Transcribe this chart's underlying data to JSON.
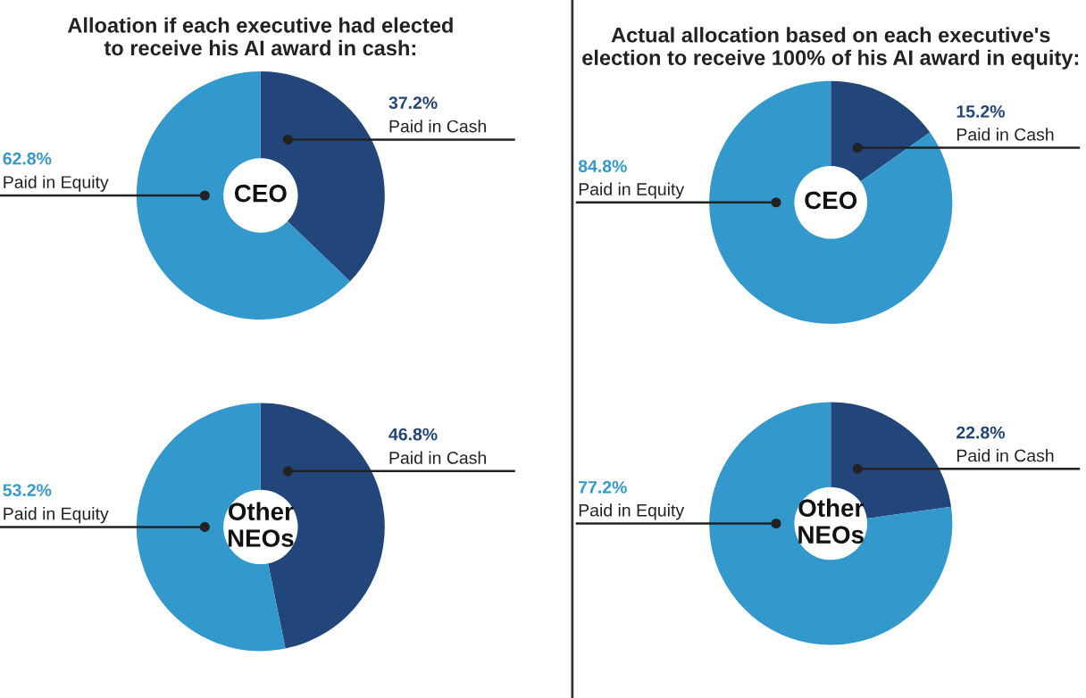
{
  "chart_data": [
    {
      "type": "donut",
      "title": "Alloation if each executive had elected\nto receive his AI award in cash:",
      "categories": [
        "Paid in Cash",
        "Paid in Equity"
      ],
      "values": [
        37.2,
        62.8
      ],
      "value_labels": [
        "37.2%",
        "62.8%"
      ],
      "colors": [
        "#22467a",
        "#3399cc"
      ],
      "annotations": [
        "CEO"
      ]
    },
    {
      "type": "donut",
      "title": "Actual allocation based on each executive's\nelection to receive 100% of his AI award in equity:",
      "categories": [
        "Paid in Cash",
        "Paid in Equity"
      ],
      "values": [
        15.2,
        84.8
      ],
      "value_labels": [
        "15.2%",
        "84.8%"
      ],
      "colors": [
        "#22467a",
        "#3399cc"
      ],
      "annotations": [
        "CEO"
      ]
    },
    {
      "type": "donut",
      "categories": [
        "Paid in Cash",
        "Paid in Equity"
      ],
      "values": [
        46.8,
        53.2
      ],
      "value_labels": [
        "46.8%",
        "53.2%"
      ],
      "colors": [
        "#22467a",
        "#3399cc"
      ],
      "annotations": [
        "Other\nNEOs"
      ]
    },
    {
      "type": "donut",
      "categories": [
        "Paid in Cash",
        "Paid in Equity"
      ],
      "values": [
        22.8,
        77.2
      ],
      "value_labels": [
        "22.8%",
        "77.2%"
      ],
      "colors": [
        "#22467a",
        "#3399cc"
      ],
      "annotations": [
        "Other\nNEOs"
      ]
    }
  ]
}
